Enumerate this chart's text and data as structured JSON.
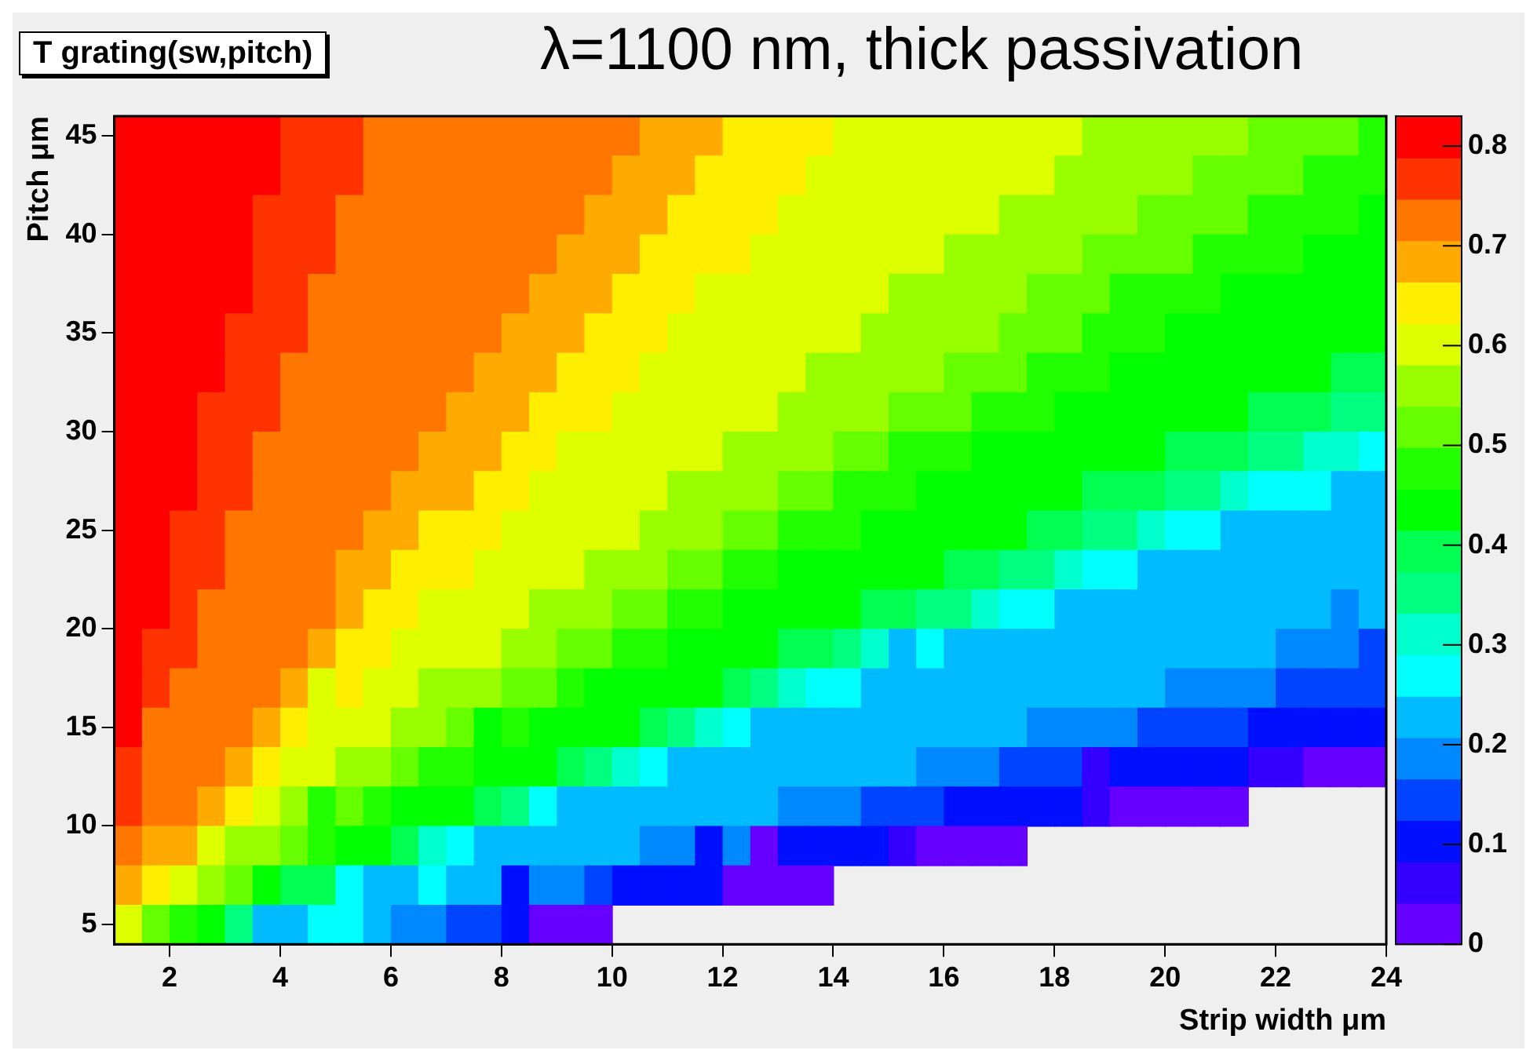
{
  "chart_data": {
    "type": "heatmap",
    "title": "T grating(sw,pitch)",
    "subtitle": "λ=1100 nm, thick passivation",
    "xlabel": "Strip width μm",
    "ylabel": "Pitch μm",
    "x": [
      1.25,
      1.75,
      2.25,
      2.75,
      3.25,
      3.75,
      4.25,
      4.75,
      5.25,
      5.75,
      6.25,
      6.75,
      7.25,
      7.75,
      8.25,
      8.75,
      9.25,
      9.75,
      10.25,
      10.75,
      11.25,
      11.75,
      12.25,
      12.75,
      13.25,
      13.75,
      14.25,
      14.75,
      15.25,
      15.75,
      16.25,
      16.75,
      17.25,
      17.75,
      18.25,
      18.75,
      19.25,
      19.75,
      20.25,
      20.75,
      21.25,
      21.75,
      22.25,
      22.75,
      23.25,
      23.75
    ],
    "y": [
      45,
      43,
      41,
      39,
      37,
      35,
      33,
      31,
      29,
      27,
      25,
      23,
      21,
      19,
      17,
      15,
      13,
      11,
      9,
      7,
      5
    ],
    "xlim": [
      1,
      24
    ],
    "xticks": [
      2,
      4,
      6,
      8,
      10,
      12,
      14,
      16,
      18,
      20,
      22,
      24
    ],
    "ylim": [
      4,
      46
    ],
    "yticks": [
      5,
      10,
      15,
      20,
      25,
      30,
      35,
      40,
      45
    ],
    "clim": [
      0,
      0.83
    ],
    "cticks": [
      0,
      0.1,
      0.2,
      0.3,
      0.4,
      0.5,
      0.6,
      0.7,
      0.8
    ],
    "colors": [
      "#6600ff",
      "#3300ff",
      "#0010ff",
      "#0044ff",
      "#0088ff",
      "#00bbff",
      "#00ffff",
      "#00ffcc",
      "#00ff80",
      "#00ff50",
      "#00ff00",
      "#22ff00",
      "#66ff00",
      "#99ff00",
      "#ddff00",
      "#ffee00",
      "#ffaa00",
      "#ff7700",
      "#ff3300",
      "#ff0000"
    ],
    "grid": false,
    "legend": false,
    "cells": [
      [
        0.81,
        0.81,
        0.81,
        0.81,
        0.81,
        0.81,
        0.77,
        0.77,
        0.77,
        0.73,
        0.73,
        0.73,
        0.73,
        0.73,
        0.73,
        0.73,
        0.73,
        0.73,
        0.73,
        0.69,
        0.69,
        0.69,
        0.65,
        0.65,
        0.65,
        0.65,
        0.6,
        0.6,
        0.6,
        0.6,
        0.6,
        0.6,
        0.6,
        0.6,
        0.6,
        0.56,
        0.56,
        0.56,
        0.56,
        0.56,
        0.56,
        0.52,
        0.52,
        0.52,
        0.52,
        0.48
      ],
      [
        0.81,
        0.81,
        0.81,
        0.81,
        0.81,
        0.81,
        0.77,
        0.77,
        0.77,
        0.73,
        0.73,
        0.73,
        0.73,
        0.73,
        0.73,
        0.73,
        0.73,
        0.73,
        0.69,
        0.69,
        0.69,
        0.65,
        0.65,
        0.65,
        0.65,
        0.6,
        0.6,
        0.6,
        0.6,
        0.6,
        0.6,
        0.6,
        0.6,
        0.6,
        0.56,
        0.56,
        0.56,
        0.56,
        0.56,
        0.52,
        0.52,
        0.52,
        0.52,
        0.48,
        0.48,
        0.48
      ],
      [
        0.81,
        0.81,
        0.81,
        0.81,
        0.81,
        0.77,
        0.77,
        0.77,
        0.73,
        0.73,
        0.73,
        0.73,
        0.73,
        0.73,
        0.73,
        0.73,
        0.73,
        0.69,
        0.69,
        0.69,
        0.65,
        0.65,
        0.65,
        0.65,
        0.6,
        0.6,
        0.6,
        0.6,
        0.6,
        0.6,
        0.6,
        0.6,
        0.56,
        0.56,
        0.56,
        0.56,
        0.56,
        0.52,
        0.52,
        0.52,
        0.52,
        0.48,
        0.48,
        0.48,
        0.48,
        0.44
      ],
      [
        0.81,
        0.81,
        0.81,
        0.81,
        0.81,
        0.77,
        0.77,
        0.77,
        0.73,
        0.73,
        0.73,
        0.73,
        0.73,
        0.73,
        0.73,
        0.73,
        0.69,
        0.69,
        0.69,
        0.65,
        0.65,
        0.65,
        0.65,
        0.6,
        0.6,
        0.6,
        0.6,
        0.6,
        0.6,
        0.6,
        0.56,
        0.56,
        0.56,
        0.56,
        0.56,
        0.52,
        0.52,
        0.52,
        0.52,
        0.48,
        0.48,
        0.48,
        0.48,
        0.44,
        0.44,
        0.44
      ],
      [
        0.81,
        0.81,
        0.81,
        0.81,
        0.81,
        0.77,
        0.77,
        0.73,
        0.73,
        0.73,
        0.73,
        0.73,
        0.73,
        0.73,
        0.73,
        0.69,
        0.69,
        0.69,
        0.65,
        0.65,
        0.65,
        0.6,
        0.6,
        0.6,
        0.6,
        0.6,
        0.6,
        0.6,
        0.56,
        0.56,
        0.56,
        0.56,
        0.56,
        0.52,
        0.52,
        0.52,
        0.48,
        0.48,
        0.48,
        0.48,
        0.44,
        0.44,
        0.44,
        0.44,
        0.44,
        0.44
      ],
      [
        0.81,
        0.81,
        0.81,
        0.81,
        0.77,
        0.77,
        0.77,
        0.73,
        0.73,
        0.73,
        0.73,
        0.73,
        0.73,
        0.73,
        0.69,
        0.69,
        0.69,
        0.65,
        0.65,
        0.65,
        0.6,
        0.6,
        0.6,
        0.6,
        0.6,
        0.6,
        0.6,
        0.56,
        0.56,
        0.56,
        0.56,
        0.56,
        0.52,
        0.52,
        0.52,
        0.48,
        0.48,
        0.48,
        0.44,
        0.44,
        0.44,
        0.44,
        0.44,
        0.44,
        0.44,
        0.44
      ],
      [
        0.81,
        0.81,
        0.81,
        0.81,
        0.77,
        0.77,
        0.73,
        0.73,
        0.73,
        0.73,
        0.73,
        0.73,
        0.73,
        0.69,
        0.69,
        0.69,
        0.65,
        0.65,
        0.65,
        0.6,
        0.6,
        0.6,
        0.6,
        0.6,
        0.6,
        0.56,
        0.56,
        0.56,
        0.56,
        0.56,
        0.52,
        0.52,
        0.52,
        0.48,
        0.48,
        0.48,
        0.44,
        0.44,
        0.44,
        0.44,
        0.44,
        0.44,
        0.44,
        0.44,
        0.4,
        0.4
      ],
      [
        0.81,
        0.81,
        0.81,
        0.77,
        0.77,
        0.77,
        0.73,
        0.73,
        0.73,
        0.73,
        0.73,
        0.73,
        0.69,
        0.69,
        0.69,
        0.65,
        0.65,
        0.65,
        0.6,
        0.6,
        0.6,
        0.6,
        0.6,
        0.6,
        0.56,
        0.56,
        0.56,
        0.56,
        0.52,
        0.52,
        0.52,
        0.48,
        0.48,
        0.48,
        0.44,
        0.44,
        0.44,
        0.44,
        0.44,
        0.44,
        0.44,
        0.4,
        0.4,
        0.4,
        0.35,
        0.35
      ],
      [
        0.81,
        0.81,
        0.81,
        0.77,
        0.77,
        0.73,
        0.73,
        0.73,
        0.73,
        0.73,
        0.73,
        0.69,
        0.69,
        0.69,
        0.65,
        0.65,
        0.6,
        0.6,
        0.6,
        0.6,
        0.6,
        0.6,
        0.56,
        0.56,
        0.56,
        0.56,
        0.52,
        0.52,
        0.48,
        0.48,
        0.48,
        0.44,
        0.44,
        0.44,
        0.44,
        0.44,
        0.44,
        0.44,
        0.4,
        0.4,
        0.4,
        0.35,
        0.35,
        0.31,
        0.31,
        0.27
      ],
      [
        0.81,
        0.81,
        0.81,
        0.77,
        0.77,
        0.73,
        0.73,
        0.73,
        0.73,
        0.73,
        0.69,
        0.69,
        0.69,
        0.65,
        0.65,
        0.6,
        0.6,
        0.6,
        0.6,
        0.6,
        0.56,
        0.56,
        0.56,
        0.56,
        0.52,
        0.52,
        0.48,
        0.48,
        0.48,
        0.44,
        0.44,
        0.44,
        0.44,
        0.44,
        0.44,
        0.4,
        0.4,
        0.4,
        0.35,
        0.35,
        0.31,
        0.27,
        0.27,
        0.27,
        0.23,
        0.23
      ],
      [
        0.81,
        0.81,
        0.77,
        0.77,
        0.73,
        0.73,
        0.73,
        0.73,
        0.73,
        0.69,
        0.69,
        0.65,
        0.65,
        0.65,
        0.6,
        0.6,
        0.6,
        0.6,
        0.6,
        0.56,
        0.56,
        0.56,
        0.52,
        0.52,
        0.48,
        0.48,
        0.48,
        0.44,
        0.44,
        0.44,
        0.44,
        0.44,
        0.44,
        0.4,
        0.4,
        0.35,
        0.35,
        0.31,
        0.27,
        0.27,
        0.23,
        0.23,
        0.23,
        0.23,
        0.23,
        0.23
      ],
      [
        0.81,
        0.81,
        0.77,
        0.77,
        0.73,
        0.73,
        0.73,
        0.73,
        0.69,
        0.69,
        0.65,
        0.65,
        0.65,
        0.6,
        0.6,
        0.6,
        0.6,
        0.56,
        0.56,
        0.56,
        0.52,
        0.52,
        0.48,
        0.48,
        0.44,
        0.44,
        0.44,
        0.44,
        0.44,
        0.44,
        0.4,
        0.4,
        0.35,
        0.35,
        0.31,
        0.27,
        0.27,
        0.23,
        0.23,
        0.23,
        0.23,
        0.23,
        0.23,
        0.23,
        0.23,
        0.23
      ],
      [
        0.81,
        0.81,
        0.77,
        0.73,
        0.73,
        0.73,
        0.73,
        0.73,
        0.69,
        0.65,
        0.65,
        0.6,
        0.6,
        0.6,
        0.6,
        0.56,
        0.56,
        0.56,
        0.52,
        0.52,
        0.48,
        0.48,
        0.44,
        0.44,
        0.44,
        0.44,
        0.44,
        0.4,
        0.4,
        0.35,
        0.35,
        0.31,
        0.27,
        0.27,
        0.23,
        0.23,
        0.23,
        0.23,
        0.23,
        0.23,
        0.23,
        0.23,
        0.23,
        0.23,
        0.19,
        0.23
      ],
      [
        0.81,
        0.77,
        0.77,
        0.73,
        0.73,
        0.73,
        0.73,
        0.69,
        0.65,
        0.65,
        0.6,
        0.6,
        0.6,
        0.6,
        0.56,
        0.56,
        0.52,
        0.52,
        0.48,
        0.48,
        0.44,
        0.44,
        0.44,
        0.44,
        0.4,
        0.4,
        0.35,
        0.31,
        0.23,
        0.27,
        0.23,
        0.23,
        0.23,
        0.23,
        0.23,
        0.23,
        0.23,
        0.23,
        0.23,
        0.23,
        0.23,
        0.23,
        0.19,
        0.19,
        0.19,
        0.15
      ],
      [
        0.81,
        0.77,
        0.73,
        0.73,
        0.73,
        0.73,
        0.69,
        0.6,
        0.65,
        0.6,
        0.6,
        0.56,
        0.56,
        0.56,
        0.52,
        0.52,
        0.48,
        0.44,
        0.44,
        0.44,
        0.44,
        0.44,
        0.4,
        0.35,
        0.31,
        0.27,
        0.27,
        0.23,
        0.23,
        0.23,
        0.23,
        0.23,
        0.23,
        0.23,
        0.23,
        0.23,
        0.23,
        0.23,
        0.19,
        0.19,
        0.19,
        0.19,
        0.15,
        0.15,
        0.15,
        0.15
      ],
      [
        0.81,
        0.73,
        0.73,
        0.73,
        0.73,
        0.69,
        0.65,
        0.6,
        0.6,
        0.6,
        0.56,
        0.56,
        0.52,
        0.44,
        0.48,
        0.44,
        0.44,
        0.44,
        0.44,
        0.4,
        0.35,
        0.31,
        0.27,
        0.23,
        0.23,
        0.23,
        0.23,
        0.23,
        0.23,
        0.23,
        0.23,
        0.23,
        0.23,
        0.19,
        0.19,
        0.19,
        0.19,
        0.15,
        0.15,
        0.15,
        0.15,
        0.1,
        0.1,
        0.1,
        0.1,
        0.1
      ],
      [
        0.77,
        0.73,
        0.73,
        0.73,
        0.69,
        0.65,
        0.6,
        0.6,
        0.56,
        0.56,
        0.52,
        0.48,
        0.48,
        0.44,
        0.44,
        0.44,
        0.4,
        0.35,
        0.31,
        0.27,
        0.23,
        0.23,
        0.23,
        0.23,
        0.23,
        0.23,
        0.23,
        0.23,
        0.23,
        0.19,
        0.19,
        0.19,
        0.15,
        0.15,
        0.15,
        0.06,
        0.1,
        0.1,
        0.1,
        0.1,
        0.1,
        0.06,
        0.06,
        0.02,
        0.02,
        0.02
      ],
      [
        0.77,
        0.73,
        0.73,
        0.69,
        0.65,
        0.6,
        0.56,
        0.48,
        0.52,
        0.48,
        0.44,
        0.44,
        0.44,
        0.4,
        0.35,
        0.27,
        0.23,
        0.23,
        0.23,
        0.23,
        0.23,
        0.23,
        0.23,
        0.23,
        0.19,
        0.19,
        0.19,
        0.15,
        0.15,
        0.15,
        0.1,
        0.1,
        0.1,
        0.1,
        0.1,
        0.06,
        0.02,
        0.02,
        0.02,
        0.02,
        0.02,
        null,
        null,
        null,
        null,
        null
      ],
      [
        0.73,
        0.69,
        0.69,
        0.6,
        0.56,
        0.56,
        0.52,
        0.48,
        0.44,
        0.44,
        0.4,
        0.31,
        0.27,
        0.23,
        0.23,
        0.23,
        0.23,
        0.23,
        0.23,
        0.19,
        0.19,
        0.1,
        0.19,
        0.02,
        0.1,
        0.1,
        0.1,
        0.1,
        0.06,
        0.02,
        0.02,
        0.02,
        0.02,
        null,
        null,
        null,
        null,
        null,
        null,
        null,
        null,
        null,
        null,
        null,
        null,
        null
      ],
      [
        0.69,
        0.65,
        0.6,
        0.56,
        0.52,
        0.44,
        0.4,
        0.4,
        0.27,
        0.23,
        0.23,
        0.27,
        0.23,
        0.23,
        0.1,
        0.19,
        0.19,
        0.15,
        0.1,
        0.1,
        0.1,
        0.1,
        0.02,
        0.02,
        0.02,
        0.02,
        null,
        null,
        null,
        null,
        null,
        null,
        null,
        null,
        null,
        null,
        null,
        null,
        null,
        null,
        null,
        null,
        null,
        null,
        null,
        null
      ],
      [
        0.6,
        0.52,
        0.48,
        0.44,
        0.35,
        0.23,
        0.23,
        0.27,
        0.27,
        0.23,
        0.19,
        0.19,
        0.15,
        0.15,
        0.1,
        0.02,
        0.02,
        0.02,
        null,
        null,
        null,
        null,
        null,
        null,
        null,
        null,
        null,
        null,
        null,
        null,
        null,
        null,
        null,
        null,
        null,
        null,
        null,
        null,
        null,
        null,
        null,
        null,
        null,
        null,
        null,
        null
      ]
    ]
  }
}
